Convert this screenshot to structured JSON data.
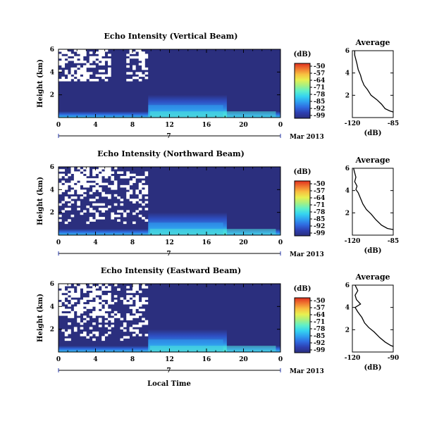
{
  "figure": {
    "xlabel": "Local Time",
    "date_label": "Mar 2013",
    "day": "7"
  },
  "colorbar": {
    "unit": "(dB)",
    "ticks": [
      "-50",
      "-57",
      "-64",
      "-71",
      "-78",
      "-85",
      "-92",
      "-99"
    ],
    "colors": [
      "#2b2f7e",
      "#2e3fb0",
      "#2f6ae0",
      "#2fa0f0",
      "#35d4f0",
      "#60f0c8",
      "#a8f080",
      "#e8f050",
      "#f8c040",
      "#f07830",
      "#e03020"
    ]
  },
  "chart_data": [
    {
      "type": "heatmap",
      "title": "Echo Intensity (Vertical Beam)",
      "ylabel": "Height (km)",
      "x_ticks": [
        "0",
        "4",
        "8",
        "12",
        "16",
        "20",
        "0"
      ],
      "y_ticks": [
        "2",
        "4",
        "6"
      ],
      "xlim": [
        0,
        24
      ],
      "ylim": [
        0,
        6
      ],
      "colorbar_range": [
        -99,
        -50
      ],
      "background_value": -99,
      "profile": {
        "title": "Average",
        "xlabel": "(dB)",
        "x_ticks": [
          "-120",
          "-85"
        ],
        "y_ticks": [
          "2",
          "4",
          "6"
        ],
        "xlim": [
          -120,
          -85
        ],
        "ylim": [
          0,
          6
        ],
        "points": [
          [
            -85,
            0.5
          ],
          [
            -88,
            0.6
          ],
          [
            -92,
            0.8
          ],
          [
            -95,
            1.2
          ],
          [
            -99,
            1.6
          ],
          [
            -104,
            2.0
          ],
          [
            -107,
            2.5
          ],
          [
            -110,
            2.9
          ],
          [
            -112,
            3.4
          ],
          [
            -113,
            3.8
          ],
          [
            -115,
            4.3
          ],
          [
            -116,
            4.8
          ],
          [
            -117,
            5.2
          ],
          [
            -118,
            5.6
          ],
          [
            -118,
            6.0
          ]
        ]
      }
    },
    {
      "type": "heatmap",
      "title": "Echo Intensity (Northward Beam)",
      "ylabel": "Height (km)",
      "x_ticks": [
        "0",
        "4",
        "8",
        "12",
        "16",
        "20",
        "0"
      ],
      "y_ticks": [
        "2",
        "4",
        "6"
      ],
      "xlim": [
        0,
        24
      ],
      "ylim": [
        0,
        6
      ],
      "colorbar_range": [
        -99,
        -50
      ],
      "background_value": -99,
      "profile": {
        "title": "Average",
        "xlabel": "(dB)",
        "x_ticks": [
          "-120",
          "-85"
        ],
        "y_ticks": [
          "2",
          "4",
          "6"
        ],
        "xlim": [
          -120,
          -85
        ],
        "ylim": [
          0,
          6
        ],
        "points": [
          [
            -85,
            0.5
          ],
          [
            -90,
            0.6
          ],
          [
            -95,
            0.9
          ],
          [
            -100,
            1.4
          ],
          [
            -104,
            1.9
          ],
          [
            -108,
            2.3
          ],
          [
            -111,
            2.8
          ],
          [
            -113,
            3.3
          ],
          [
            -115,
            3.8
          ],
          [
            -117,
            4.1
          ],
          [
            -116,
            4.4
          ],
          [
            -118,
            4.8
          ],
          [
            -117,
            5.2
          ],
          [
            -118,
            5.6
          ],
          [
            -119,
            6.0
          ]
        ]
      }
    },
    {
      "type": "heatmap",
      "title": "Echo Intensity (Eastward Beam)",
      "ylabel": "Height (km)",
      "x_ticks": [
        "0",
        "4",
        "8",
        "12",
        "16",
        "20",
        "0"
      ],
      "y_ticks": [
        "2",
        "4",
        "6"
      ],
      "xlim": [
        0,
        24
      ],
      "ylim": [
        0,
        6
      ],
      "colorbar_range": [
        -99,
        -50
      ],
      "background_value": -99,
      "profile": {
        "title": "Average",
        "xlabel": "(dB)",
        "x_ticks": [
          "-120",
          "-90"
        ],
        "y_ticks": [
          "2",
          "4",
          "6"
        ],
        "xlim": [
          -120,
          -90
        ],
        "ylim": [
          0,
          6
        ],
        "points": [
          [
            -90,
            0.5
          ],
          [
            -92,
            0.6
          ],
          [
            -96,
            0.9
          ],
          [
            -100,
            1.3
          ],
          [
            -104,
            1.8
          ],
          [
            -108,
            2.2
          ],
          [
            -111,
            2.6
          ],
          [
            -113,
            3.1
          ],
          [
            -116,
            3.6
          ],
          [
            -118,
            4.0
          ],
          [
            -114,
            4.3
          ],
          [
            -117,
            4.7
          ],
          [
            -118,
            5.1
          ],
          [
            -116,
            5.5
          ],
          [
            -118,
            6.0
          ]
        ]
      }
    }
  ]
}
